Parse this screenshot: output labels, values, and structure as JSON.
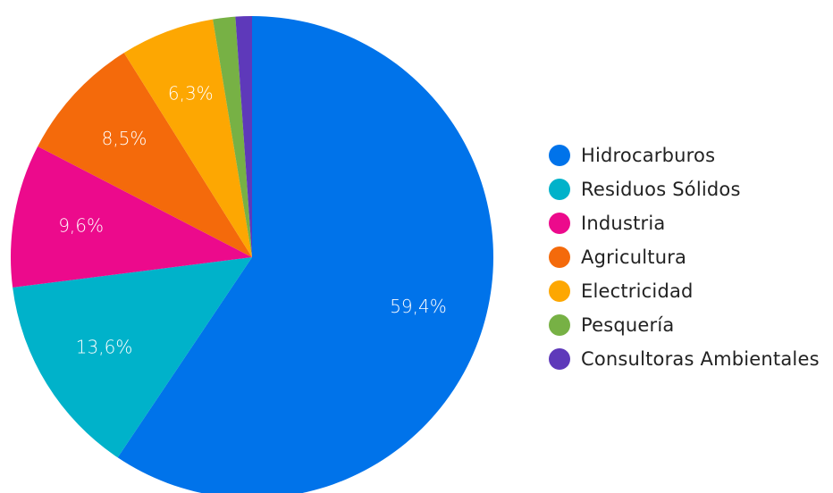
{
  "chart_data": {
    "type": "pie",
    "title": "",
    "categories": [
      "Hidrocarburos",
      "Residuos Sólidos",
      "Industria",
      "Agricultura",
      "Electricidad",
      "Pesquería",
      "Consultoras Ambientales"
    ],
    "values": [
      59.4,
      13.6,
      9.6,
      8.5,
      6.3,
      1.5,
      1.1
    ],
    "labels": [
      "59,4%",
      "13,6%",
      "9,6%",
      "8,5%",
      "6,3%",
      "",
      ""
    ],
    "colors": [
      "#0073ea",
      "#00b2ca",
      "#ec0a8c",
      "#f46a0b",
      "#fda702",
      "#77b145",
      "#5e39ba"
    ],
    "legend_position": "right"
  }
}
